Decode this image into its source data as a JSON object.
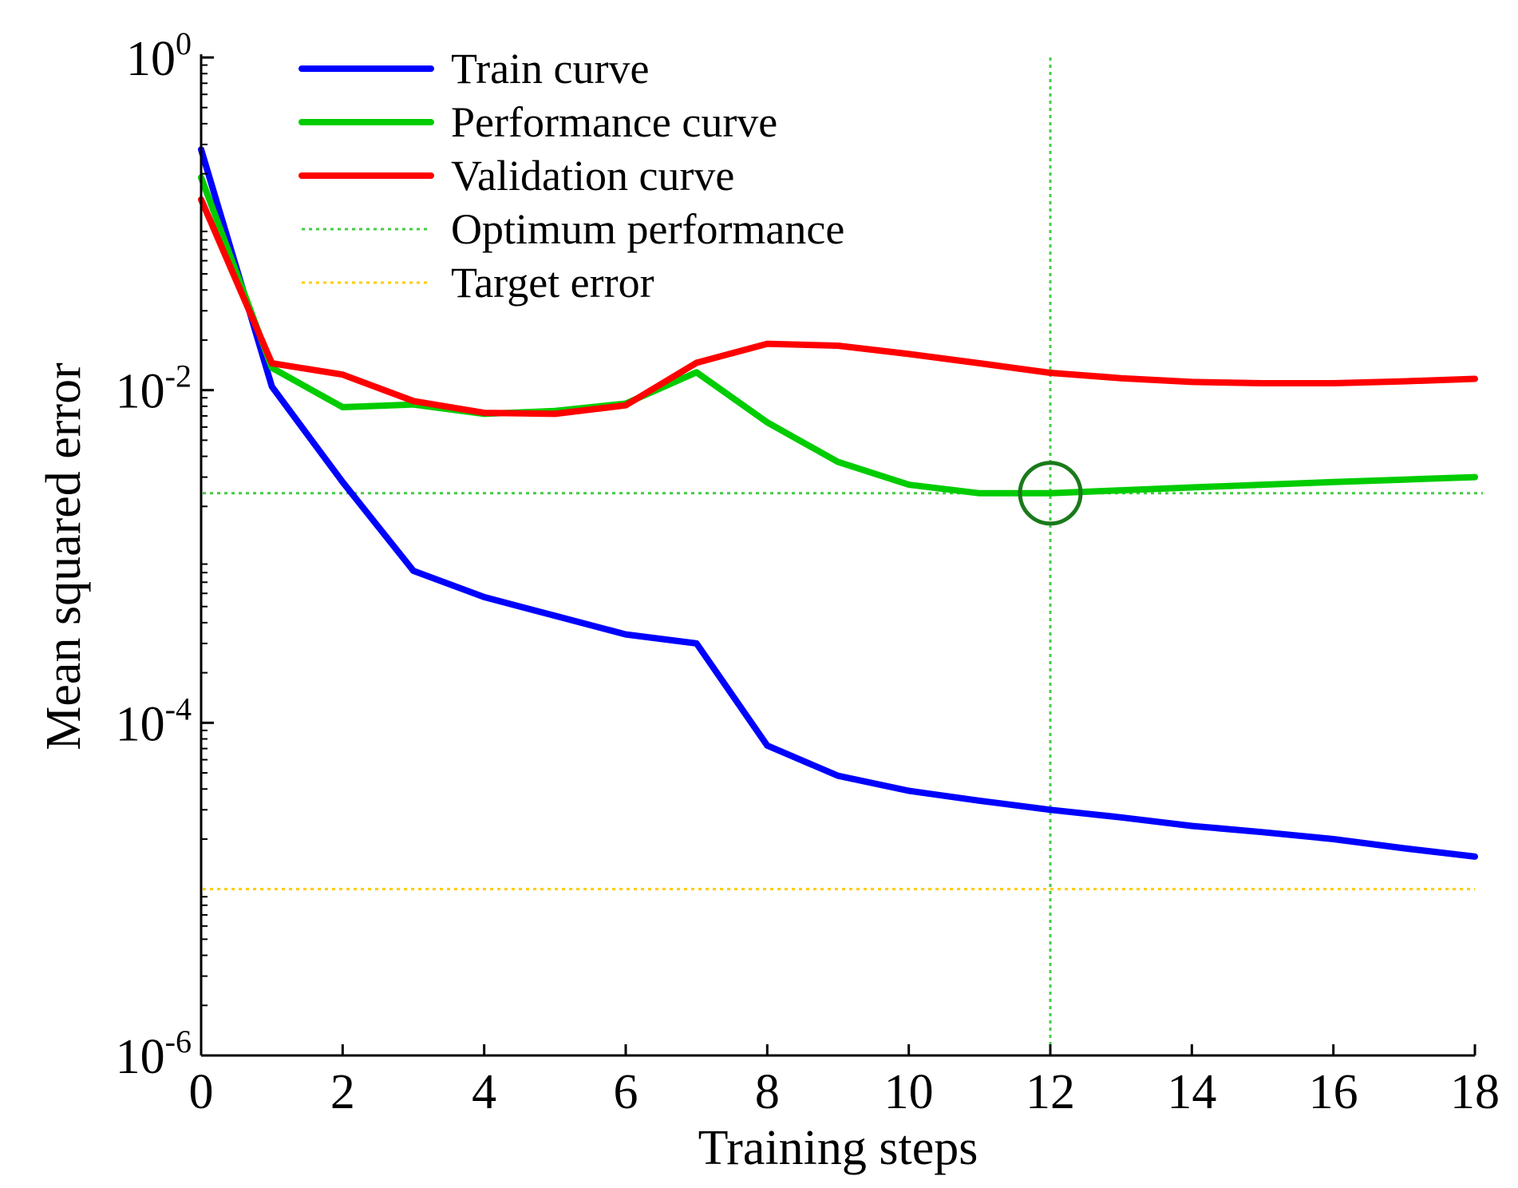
{
  "chart_data": {
    "type": "line",
    "title": "",
    "xlabel": "Training steps",
    "ylabel": "Mean squared error",
    "y_scale": "log",
    "xlim": [
      0,
      18
    ],
    "ylim": [
      1e-06,
      1
    ],
    "x_ticks": [
      {
        "value": 0,
        "label": "0"
      },
      {
        "value": 2,
        "label": "2"
      },
      {
        "value": 4,
        "label": "4"
      },
      {
        "value": 6,
        "label": "6"
      },
      {
        "value": 8,
        "label": "8"
      },
      {
        "value": 10,
        "label": "10"
      },
      {
        "value": 12,
        "label": "12"
      },
      {
        "value": 14,
        "label": "14"
      },
      {
        "value": 16,
        "label": "16"
      },
      {
        "value": 18,
        "label": "18"
      }
    ],
    "y_ticks": [
      {
        "value": 1,
        "base": "10",
        "exp": "0"
      },
      {
        "value": 0.01,
        "base": "10",
        "exp": "-2"
      },
      {
        "value": 0.0001,
        "base": "10",
        "exp": "-4"
      },
      {
        "value": 1e-06,
        "base": "10",
        "exp": "-6"
      }
    ],
    "legend_position": "top-left",
    "series": [
      {
        "name": "Train curve",
        "color": "#0000ff",
        "style": "solid",
        "x": [
          0,
          1,
          2,
          3,
          4,
          5,
          6,
          7,
          8,
          9,
          10,
          11,
          12,
          13,
          14,
          15,
          16,
          17,
          18
        ],
        "values": [
          0.28,
          0.0105,
          0.0028,
          0.00082,
          0.00057,
          0.00044,
          0.00034,
          0.0003,
          7.3e-05,
          4.8e-05,
          3.9e-05,
          3.4e-05,
          3e-05,
          2.7e-05,
          2.4e-05,
          2.2e-05,
          2e-05,
          1.76e-05,
          1.57e-05
        ]
      },
      {
        "name": "Performance curve",
        "color": "#00cc00",
        "style": "solid",
        "x": [
          0,
          1,
          2,
          3,
          4,
          5,
          6,
          7,
          8,
          9,
          10,
          11,
          12,
          13,
          14,
          15,
          16,
          17,
          18
        ],
        "values": [
          0.19,
          0.0136,
          0.0079,
          0.0082,
          0.0072,
          0.0075,
          0.0083,
          0.0128,
          0.0064,
          0.0037,
          0.0027,
          0.0024,
          0.0024,
          0.0025,
          0.0026,
          0.0027,
          0.0028,
          0.0029,
          0.003
        ]
      },
      {
        "name": "Validation curve",
        "color": "#ff0000",
        "style": "solid",
        "x": [
          0,
          1,
          2,
          3,
          4,
          5,
          6,
          7,
          8,
          9,
          10,
          11,
          12,
          13,
          14,
          15,
          16,
          17,
          18
        ],
        "values": [
          0.14,
          0.0145,
          0.0124,
          0.0086,
          0.0073,
          0.0072,
          0.0081,
          0.0146,
          0.019,
          0.0185,
          0.0165,
          0.0145,
          0.0127,
          0.0118,
          0.0112,
          0.011,
          0.011,
          0.0113,
          0.0117
        ]
      },
      {
        "name": "Optimum performance",
        "color": "#44cc44",
        "style": "dotted",
        "values": [
          0.0024
        ]
      },
      {
        "name": "Target error",
        "color": "#ffcc00",
        "style": "dotted",
        "values": [
          1e-05
        ]
      }
    ],
    "annotations": [
      {
        "type": "vertical-line",
        "x": 12,
        "color": "#44cc44",
        "style": "dotted"
      },
      {
        "type": "circle-marker",
        "x": 12,
        "y": 0.0024,
        "color": "#1a7a1a"
      }
    ]
  }
}
